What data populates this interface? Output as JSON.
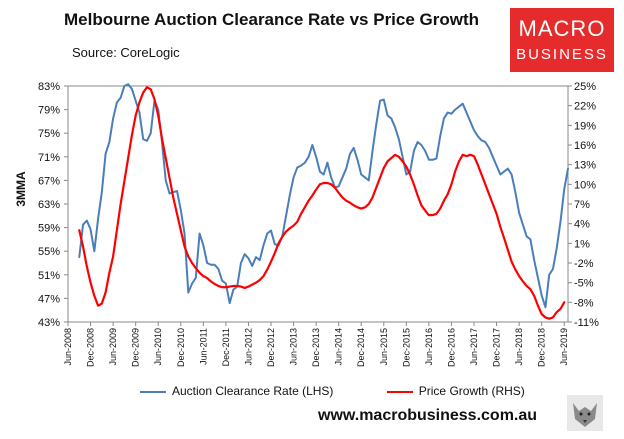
{
  "title": "Melbourne Auction Clearance Rate vs Price Growth",
  "source": "Source: CoreLogic",
  "logo": {
    "line1": "MACRO",
    "line2": "BUSINESS"
  },
  "website": "www.macrobusiness.com.au",
  "chart_data": {
    "type": "line",
    "title": "Melbourne Auction Clearance Rate vs Price Growth",
    "ylabel": "3MMA",
    "left_axis": {
      "ticks": [
        "43%",
        "47%",
        "51%",
        "55%",
        "59%",
        "63%",
        "67%",
        "71%",
        "75%",
        "79%",
        "83%"
      ],
      "ylim": [
        43,
        83
      ]
    },
    "right_axis": {
      "ticks": [
        "-11%",
        "-8%",
        "-5%",
        "-2%",
        "1%",
        "4%",
        "7%",
        "10%",
        "13%",
        "16%",
        "19%",
        "22%",
        "25%"
      ],
      "ylim": [
        -11,
        25
      ]
    },
    "x_ticks": [
      "Jun-2008",
      "Dec-2008",
      "Jun-2009",
      "Dec-2009",
      "Jun-2010",
      "Dec-2010",
      "Jun-2011",
      "Dec-2011",
      "Jun-2012",
      "Dec-2012",
      "Jun-2013",
      "Dec-2013",
      "Jun-2014",
      "Dec-2014",
      "Jun-2015",
      "Dec-2015",
      "Jun-2016",
      "Dec-2016",
      "Jun-2017",
      "Dec-2017",
      "Jun-2018",
      "Dec-2018",
      "Jun-2019"
    ],
    "legend": {
      "placement": "bottom"
    },
    "series": [
      {
        "name": "Auction Clearance Rate (LHS)",
        "axis": "left",
        "color": "#4a7ebb",
        "x": [
          "2008-09",
          "2008-10",
          "2008-11",
          "2008-12",
          "2009-01",
          "2009-02",
          "2009-03",
          "2009-04",
          "2009-05",
          "2009-06",
          "2009-07",
          "2009-08",
          "2009-09",
          "2009-10",
          "2009-11",
          "2009-12",
          "2010-01",
          "2010-02",
          "2010-03",
          "2010-04",
          "2010-05",
          "2010-06",
          "2010-07",
          "2010-08",
          "2010-09",
          "2010-10",
          "2010-11",
          "2010-12",
          "2011-01",
          "2011-02",
          "2011-03",
          "2011-04",
          "2011-05",
          "2011-06",
          "2011-07",
          "2011-08",
          "2011-09",
          "2011-10",
          "2011-11",
          "2011-12",
          "2012-01",
          "2012-02",
          "2012-03",
          "2012-04",
          "2012-05",
          "2012-06",
          "2012-07",
          "2012-08",
          "2012-09",
          "2012-10",
          "2012-11",
          "2012-12",
          "2013-01",
          "2013-02",
          "2013-03",
          "2013-04",
          "2013-05",
          "2013-06",
          "2013-07",
          "2013-08",
          "2013-09",
          "2013-10",
          "2013-11",
          "2013-12",
          "2014-01",
          "2014-02",
          "2014-03",
          "2014-04",
          "2014-05",
          "2014-06",
          "2014-07",
          "2014-08",
          "2014-09",
          "2014-10",
          "2014-11",
          "2014-12",
          "2015-01",
          "2015-02",
          "2015-03",
          "2015-04",
          "2015-05",
          "2015-06",
          "2015-07",
          "2015-08",
          "2015-09",
          "2015-10",
          "2015-11",
          "2015-12",
          "2016-01",
          "2016-02",
          "2016-03",
          "2016-04",
          "2016-05",
          "2016-06",
          "2016-07",
          "2016-08",
          "2016-09",
          "2016-10",
          "2016-11",
          "2016-12",
          "2017-01",
          "2017-02",
          "2017-03",
          "2017-04",
          "2017-05",
          "2017-06",
          "2017-07",
          "2017-08",
          "2017-09",
          "2017-10",
          "2017-11",
          "2017-12",
          "2018-01",
          "2018-02",
          "2018-03",
          "2018-04",
          "2018-05",
          "2018-06",
          "2018-07",
          "2018-08",
          "2018-09",
          "2018-10",
          "2018-11",
          "2018-12",
          "2019-01",
          "2019-02",
          "2019-03",
          "2019-04",
          "2019-05",
          "2019-06",
          "2019-07"
        ],
        "values": [
          54.0,
          59.5,
          60.2,
          58.7,
          55.0,
          60.5,
          65.0,
          71.5,
          73.5,
          77.5,
          80.2,
          81.0,
          83.0,
          83.3,
          82.5,
          80.5,
          78.5,
          74.0,
          73.7,
          75.0,
          80.5,
          79.0,
          73.5,
          67.0,
          64.8,
          65.0,
          65.2,
          62.0,
          58.0,
          48.0,
          49.5,
          50.5,
          58.0,
          56.0,
          53.0,
          52.7,
          52.7,
          52.0,
          50.0,
          49.5,
          46.2,
          48.5,
          49.0,
          53.0,
          54.5,
          53.8,
          52.5,
          54.0,
          53.5,
          56.0,
          58.0,
          58.5,
          56.2,
          56.0,
          57.5,
          61.0,
          64.5,
          67.5,
          69.2,
          69.5,
          70.0,
          71.0,
          73.0,
          71.0,
          68.5,
          68.0,
          70.0,
          67.5,
          65.8,
          66.0,
          67.5,
          69.0,
          71.5,
          72.5,
          70.5,
          68.0,
          67.5,
          67.0,
          72.0,
          76.5,
          80.5,
          80.7,
          78.0,
          77.5,
          76.0,
          74.0,
          71.0,
          68.0,
          68.5,
          72.0,
          73.5,
          73.0,
          72.0,
          70.5,
          70.5,
          70.7,
          74.5,
          77.5,
          78.5,
          78.3,
          79.0,
          79.5,
          80.0,
          78.5,
          77.0,
          75.5,
          74.5,
          73.8,
          73.5,
          72.5,
          71.0,
          69.5,
          68.0,
          68.5,
          69.0,
          68.0,
          65.0,
          61.5,
          59.5,
          57.5,
          57.0,
          53.5,
          50.5,
          47.5,
          45.5,
          51.0,
          52.0,
          55.5,
          60.0,
          65.5,
          69.0
        ]
      },
      {
        "name": "Price Growth (RHS)",
        "axis": "right",
        "color": "#ff0000",
        "x": [
          "2008-09",
          "2008-10",
          "2008-11",
          "2008-12",
          "2009-01",
          "2009-02",
          "2009-03",
          "2009-04",
          "2009-05",
          "2009-06",
          "2009-07",
          "2009-08",
          "2009-09",
          "2009-10",
          "2009-11",
          "2009-12",
          "2010-01",
          "2010-02",
          "2010-03",
          "2010-04",
          "2010-05",
          "2010-06",
          "2010-07",
          "2010-08",
          "2010-09",
          "2010-10",
          "2010-11",
          "2010-12",
          "2011-01",
          "2011-02",
          "2011-03",
          "2011-04",
          "2011-05",
          "2011-06",
          "2011-07",
          "2011-08",
          "2011-09",
          "2011-10",
          "2011-11",
          "2011-12",
          "2012-01",
          "2012-02",
          "2012-03",
          "2012-04",
          "2012-05",
          "2012-06",
          "2012-07",
          "2012-08",
          "2012-09",
          "2012-10",
          "2012-11",
          "2012-12",
          "2013-01",
          "2013-02",
          "2013-03",
          "2013-04",
          "2013-05",
          "2013-06",
          "2013-07",
          "2013-08",
          "2013-09",
          "2013-10",
          "2013-11",
          "2013-12",
          "2014-01",
          "2014-02",
          "2014-03",
          "2014-04",
          "2014-05",
          "2014-06",
          "2014-07",
          "2014-08",
          "2014-09",
          "2014-10",
          "2014-11",
          "2014-12",
          "2015-01",
          "2015-02",
          "2015-03",
          "2015-04",
          "2015-05",
          "2015-06",
          "2015-07",
          "2015-08",
          "2015-09",
          "2015-10",
          "2015-11",
          "2015-12",
          "2016-01",
          "2016-02",
          "2016-03",
          "2016-04",
          "2016-05",
          "2016-06",
          "2016-07",
          "2016-08",
          "2016-09",
          "2016-10",
          "2016-11",
          "2016-12",
          "2017-01",
          "2017-02",
          "2017-03",
          "2017-04",
          "2017-05",
          "2017-06",
          "2017-07",
          "2017-08",
          "2017-09",
          "2017-10",
          "2017-11",
          "2017-12",
          "2018-01",
          "2018-02",
          "2018-03",
          "2018-04",
          "2018-05",
          "2018-06",
          "2018-07",
          "2018-08",
          "2018-09",
          "2018-10",
          "2018-11",
          "2018-12",
          "2019-01",
          "2019-02",
          "2019-03",
          "2019-04",
          "2019-05",
          "2019-06"
        ],
        "values": [
          3.0,
          0.5,
          -2.5,
          -5.0,
          -7.0,
          -8.5,
          -8.2,
          -6.5,
          -3.5,
          -1.0,
          3.0,
          7.0,
          10.5,
          14.0,
          17.5,
          20.5,
          22.5,
          24.0,
          24.8,
          24.5,
          23.0,
          20.5,
          17.0,
          14.0,
          11.0,
          8.0,
          5.5,
          3.0,
          0.5,
          -1.0,
          -2.0,
          -2.8,
          -3.5,
          -4.0,
          -4.3,
          -4.8,
          -5.2,
          -5.5,
          -5.7,
          -5.7,
          -5.6,
          -5.5,
          -5.5,
          -5.6,
          -5.8,
          -5.6,
          -5.3,
          -5.0,
          -4.6,
          -4.0,
          -3.0,
          -1.8,
          -0.5,
          1.0,
          2.0,
          2.8,
          3.3,
          3.7,
          4.3,
          5.5,
          6.5,
          7.5,
          8.3,
          9.2,
          10.0,
          10.2,
          10.2,
          10.0,
          9.5,
          8.7,
          8.0,
          7.5,
          7.2,
          6.8,
          6.5,
          6.3,
          6.5,
          7.0,
          8.0,
          9.5,
          11.0,
          12.5,
          13.5,
          14.0,
          14.5,
          14.2,
          13.5,
          12.7,
          11.5,
          10.0,
          8.3,
          6.8,
          6.0,
          5.3,
          5.3,
          5.5,
          6.3,
          7.5,
          8.5,
          10.0,
          12.0,
          13.5,
          14.5,
          14.3,
          14.5,
          14.3,
          13.0,
          11.5,
          10.0,
          8.5,
          7.0,
          5.5,
          3.5,
          1.8,
          0.0,
          -1.8,
          -3.0,
          -4.0,
          -4.8,
          -5.5,
          -6.0,
          -7.0,
          -8.5,
          -9.8,
          -10.3,
          -10.5,
          -10.3,
          -9.5,
          -9.0,
          -8.0
        ]
      }
    ]
  }
}
